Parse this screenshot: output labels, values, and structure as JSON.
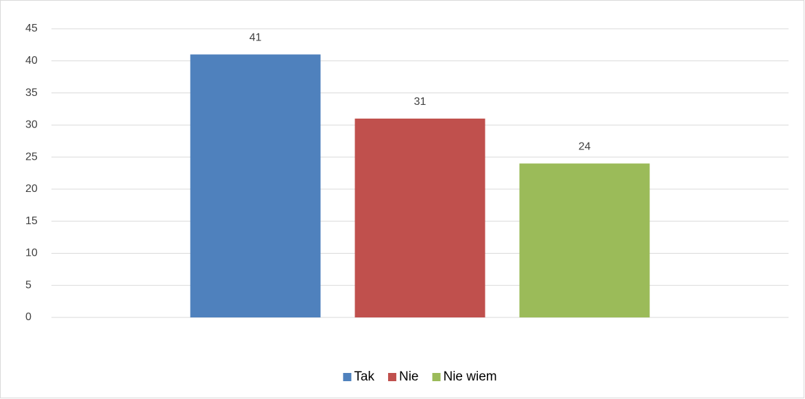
{
  "chart_data": {
    "type": "bar",
    "categories": [
      null
    ],
    "series": [
      {
        "name": "Tak",
        "color": "#4f81bd",
        "values": [
          41
        ]
      },
      {
        "name": "Nie",
        "color": "#c0504d",
        "values": [
          31
        ]
      },
      {
        "name": "Nie wiem",
        "color": "#9bbb59",
        "values": [
          24
        ]
      }
    ],
    "ylim": [
      0,
      45
    ],
    "yticks": [
      0,
      5,
      10,
      15,
      20,
      25,
      30,
      35,
      40,
      45
    ],
    "grid": true,
    "legend": "bottom",
    "data_labels": true
  }
}
